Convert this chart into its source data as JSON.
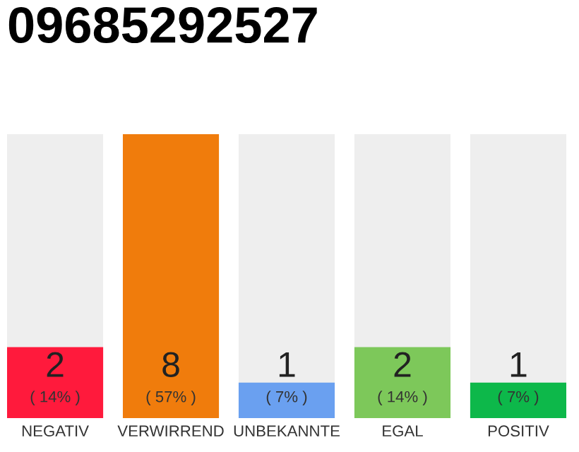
{
  "chart_data": {
    "type": "bar",
    "title": "09685292527",
    "categories": [
      "NEGATIV",
      "VERWIRREND",
      "UNBEKANNTE",
      "EGAL",
      "POSITIV"
    ],
    "values": [
      2,
      8,
      1,
      2,
      1
    ],
    "colors": [
      "#ff1a3c",
      "#f07c0c",
      "#6aa0f0",
      "#7dc85a",
      "#0db84a"
    ],
    "value_labels": [
      "2\n( 14% )",
      "8\n( 57% )",
      "1\n( 7% )",
      "2\n( 14% )",
      "1\n( 7% )"
    ],
    "ylim": [
      0,
      8
    ],
    "tick_labels": "x",
    "grid": false,
    "legend": false
  }
}
